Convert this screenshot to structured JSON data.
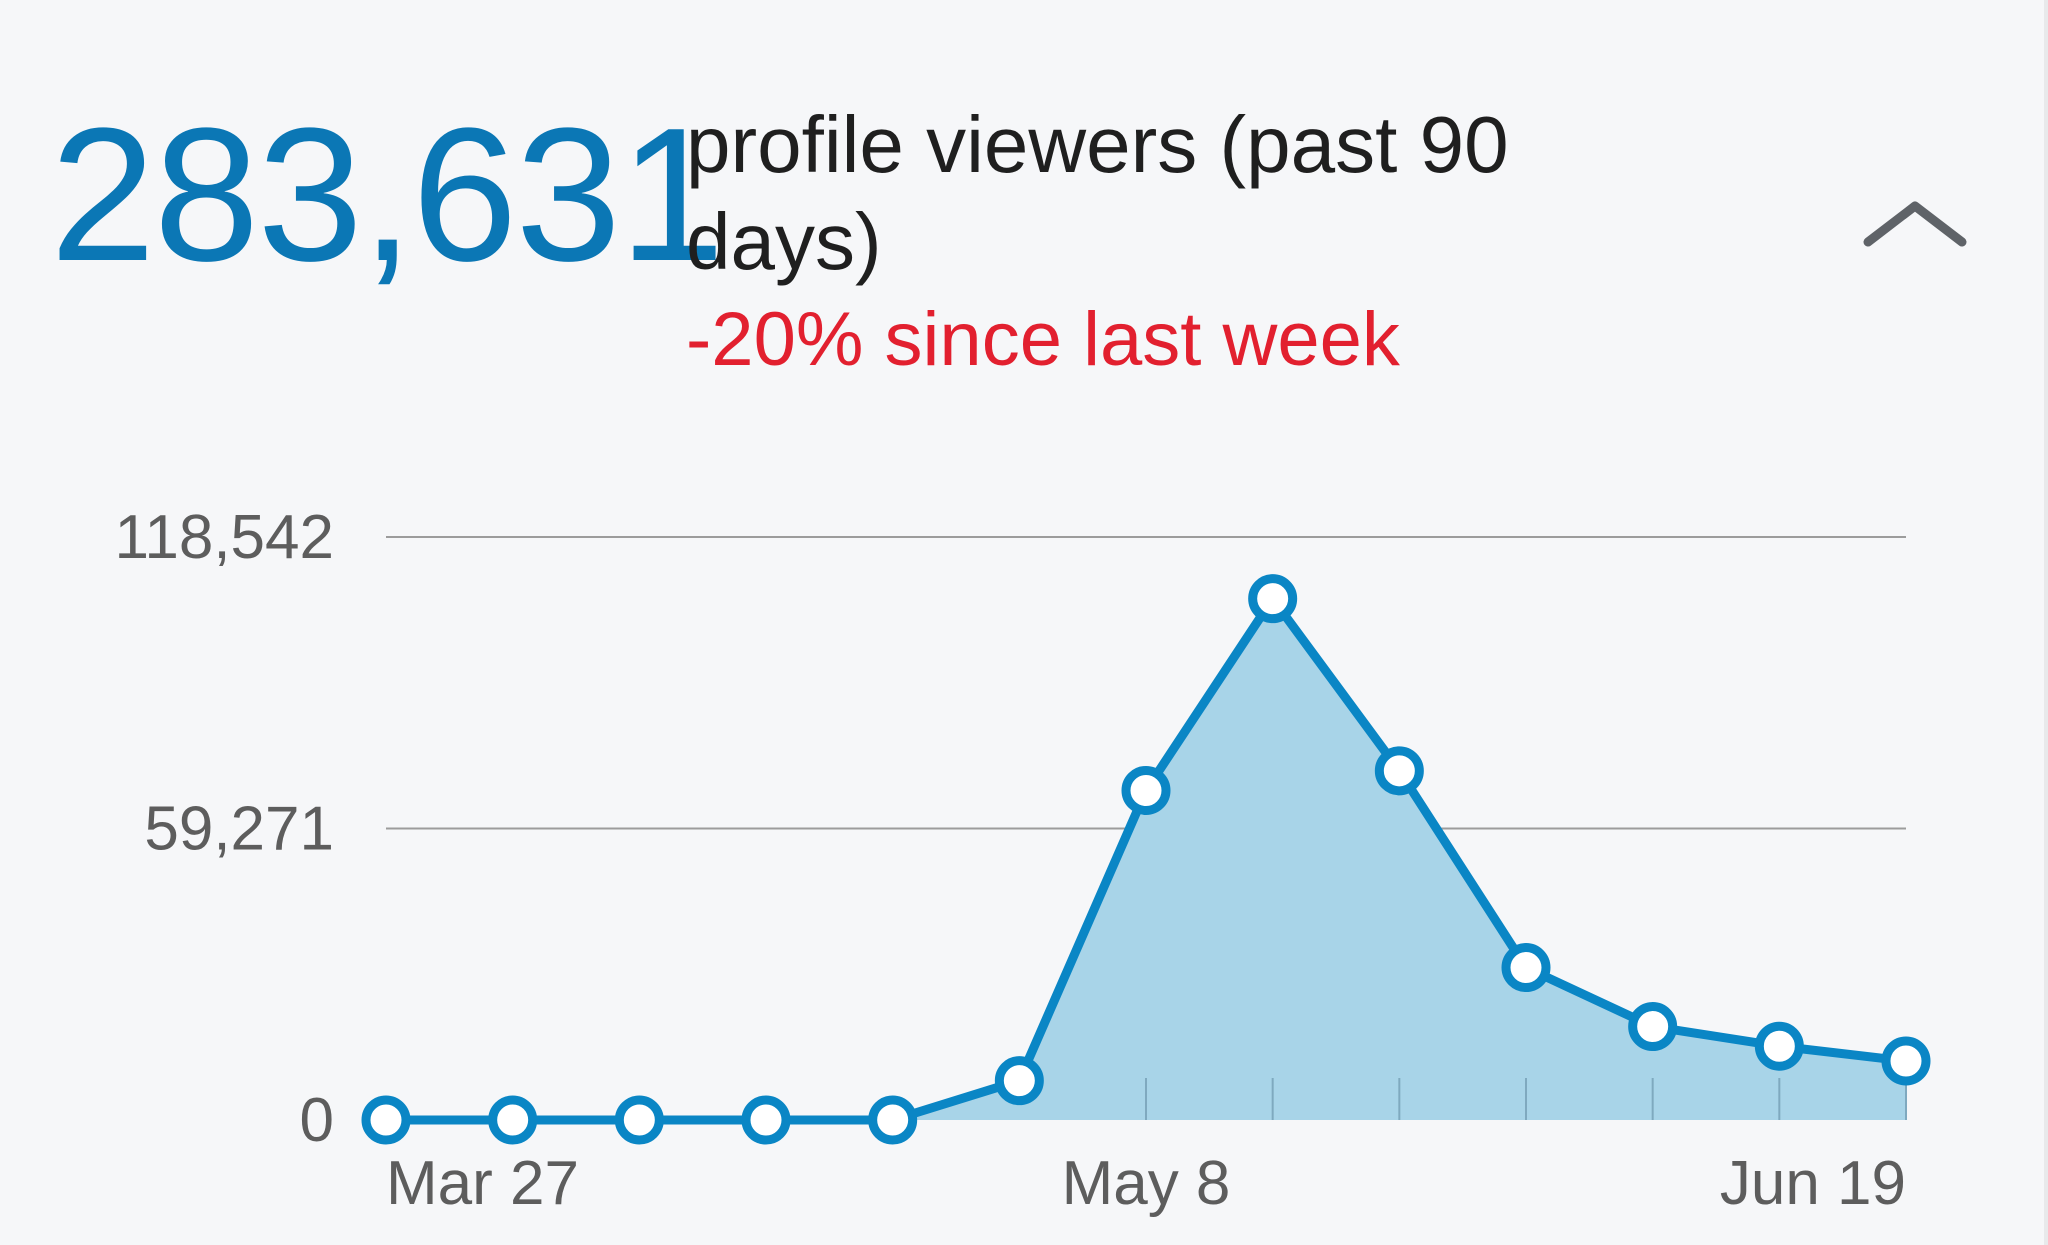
{
  "summary": {
    "count": "283,631",
    "title": "profile viewers (past 90 days)",
    "change": "-20% since last week"
  },
  "icons": {
    "collapse": "chevron-up-icon"
  },
  "colors": {
    "accent": "#0b77b5",
    "line": "#0a86c5",
    "area": "#a8d4e8",
    "negative": "#e2202f",
    "grid": "#9c9c9c"
  },
  "chart_data": {
    "type": "area",
    "x": [
      "Mar 27",
      "",
      "",
      "",
      "",
      "",
      "May 8",
      "",
      "",
      "",
      "",
      "",
      "Jun 19"
    ],
    "x_tick_labels": [
      "Mar 27",
      "May 8",
      "Jun 19"
    ],
    "x_tick_indices": [
      0,
      6,
      12
    ],
    "series": [
      {
        "values": [
          0,
          0,
          0,
          0,
          0,
          8000,
          67000,
          106000,
          71000,
          31000,
          19000,
          15000,
          12000
        ]
      }
    ],
    "y_ticks": [
      "0",
      "59,271",
      "118,542"
    ],
    "y_tick_values": [
      0,
      59271,
      118542
    ],
    "ylim": [
      0,
      118542
    ],
    "grid": true,
    "legend": "none"
  }
}
